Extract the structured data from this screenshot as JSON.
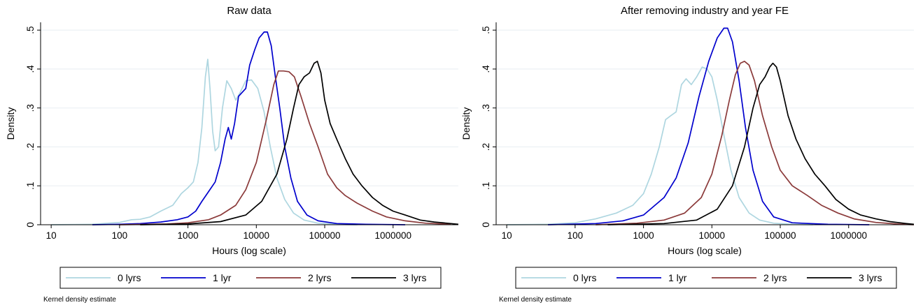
{
  "chart_data": [
    {
      "type": "line",
      "title": "Raw data",
      "xlabel": "Hours (log scale)",
      "ylabel": "Density",
      "x_scale": "log",
      "xlim": [
        7,
        9000000
      ],
      "ylim": [
        0,
        0.52
      ],
      "x_ticks": [
        10,
        100,
        1000,
        10000,
        100000,
        1000000
      ],
      "x_tick_labels": [
        "10",
        "100",
        "1000",
        "10000",
        "100000",
        "1000000"
      ],
      "y_ticks": [
        0,
        0.1,
        0.2,
        0.3,
        0.4,
        0.5
      ],
      "y_tick_labels": [
        "0",
        ".1",
        ".2",
        ".3",
        ".4",
        ".5"
      ],
      "grid": true,
      "legend_position": "bottom",
      "note": "Kernel density estimate",
      "series": [
        {
          "name": "0 lyrs",
          "color": "#aed6e0",
          "points": [
            [
              10,
              0
            ],
            [
              40,
              0.001
            ],
            [
              100,
              0.006
            ],
            [
              150,
              0.013
            ],
            [
              200,
              0.014
            ],
            [
              280,
              0.02
            ],
            [
              400,
              0.035
            ],
            [
              600,
              0.05
            ],
            [
              800,
              0.08
            ],
            [
              1000,
              0.095
            ],
            [
              1200,
              0.11
            ],
            [
              1400,
              0.16
            ],
            [
              1600,
              0.25
            ],
            [
              1800,
              0.38
            ],
            [
              1950,
              0.425
            ],
            [
              2100,
              0.35
            ],
            [
              2300,
              0.24
            ],
            [
              2500,
              0.19
            ],
            [
              2800,
              0.2
            ],
            [
              3200,
              0.3
            ],
            [
              3700,
              0.37
            ],
            [
              4300,
              0.35
            ],
            [
              5000,
              0.32
            ],
            [
              5800,
              0.34
            ],
            [
              7000,
              0.37
            ],
            [
              8500,
              0.372
            ],
            [
              10500,
              0.35
            ],
            [
              13000,
              0.29
            ],
            [
              16000,
              0.2
            ],
            [
              20000,
              0.12
            ],
            [
              26000,
              0.065
            ],
            [
              35000,
              0.03
            ],
            [
              50000,
              0.012
            ],
            [
              80000,
              0.004
            ],
            [
              150000,
              0.001
            ],
            [
              300000,
              0
            ]
          ]
        },
        {
          "name": "1 lyr",
          "color": "#0000cd",
          "points": [
            [
              40,
              0
            ],
            [
              100,
              0.001
            ],
            [
              200,
              0.003
            ],
            [
              400,
              0.007
            ],
            [
              700,
              0.013
            ],
            [
              1000,
              0.02
            ],
            [
              1300,
              0.035
            ],
            [
              1600,
              0.06
            ],
            [
              2000,
              0.085
            ],
            [
              2500,
              0.11
            ],
            [
              3000,
              0.16
            ],
            [
              3500,
              0.22
            ],
            [
              3900,
              0.25
            ],
            [
              4300,
              0.22
            ],
            [
              4800,
              0.26
            ],
            [
              5500,
              0.33
            ],
            [
              6200,
              0.34
            ],
            [
              7000,
              0.35
            ],
            [
              8000,
              0.41
            ],
            [
              9500,
              0.45
            ],
            [
              11000,
              0.48
            ],
            [
              13000,
              0.495
            ],
            [
              14500,
              0.495
            ],
            [
              16500,
              0.46
            ],
            [
              19000,
              0.38
            ],
            [
              22000,
              0.3
            ],
            [
              26000,
              0.2
            ],
            [
              32000,
              0.12
            ],
            [
              40000,
              0.06
            ],
            [
              55000,
              0.025
            ],
            [
              80000,
              0.01
            ],
            [
              150000,
              0.003
            ],
            [
              400000,
              0.001
            ],
            [
              1500000,
              0
            ]
          ]
        },
        {
          "name": "2 lyrs",
          "color": "#8b3a3a",
          "points": [
            [
              100,
              0
            ],
            [
              500,
              0.002
            ],
            [
              1000,
              0.005
            ],
            [
              2000,
              0.013
            ],
            [
              3000,
              0.025
            ],
            [
              5000,
              0.05
            ],
            [
              7000,
              0.09
            ],
            [
              10000,
              0.16
            ],
            [
              14000,
              0.27
            ],
            [
              18000,
              0.36
            ],
            [
              21000,
              0.395
            ],
            [
              25000,
              0.395
            ],
            [
              30000,
              0.393
            ],
            [
              36000,
              0.38
            ],
            [
              45000,
              0.33
            ],
            [
              60000,
              0.26
            ],
            [
              80000,
              0.2
            ],
            [
              110000,
              0.13
            ],
            [
              150000,
              0.095
            ],
            [
              200000,
              0.075
            ],
            [
              300000,
              0.055
            ],
            [
              500000,
              0.035
            ],
            [
              800000,
              0.02
            ],
            [
              1500000,
              0.01
            ],
            [
              3000000,
              0.004
            ],
            [
              7000000,
              0.001
            ]
          ]
        },
        {
          "name": "3 lyrs",
          "color": "#000000",
          "points": [
            [
              200,
              0
            ],
            [
              1000,
              0.002
            ],
            [
              3000,
              0.008
            ],
            [
              7000,
              0.025
            ],
            [
              12000,
              0.06
            ],
            [
              20000,
              0.13
            ],
            [
              28000,
              0.22
            ],
            [
              35000,
              0.3
            ],
            [
              42000,
              0.36
            ],
            [
              50000,
              0.38
            ],
            [
              60000,
              0.39
            ],
            [
              70000,
              0.415
            ],
            [
              78000,
              0.42
            ],
            [
              88000,
              0.39
            ],
            [
              100000,
              0.32
            ],
            [
              120000,
              0.26
            ],
            [
              150000,
              0.22
            ],
            [
              200000,
              0.17
            ],
            [
              260000,
              0.13
            ],
            [
              350000,
              0.1
            ],
            [
              500000,
              0.07
            ],
            [
              700000,
              0.05
            ],
            [
              1000000,
              0.035
            ],
            [
              1500000,
              0.025
            ],
            [
              2500000,
              0.012
            ],
            [
              4000000,
              0.007
            ],
            [
              7000000,
              0.003
            ],
            [
              9000000,
              0.001
            ]
          ]
        }
      ]
    },
    {
      "type": "line",
      "title": "After removing industry and year FE",
      "xlabel": "Hours (log scale)",
      "ylabel": "Density",
      "x_scale": "log",
      "xlim": [
        7,
        9000000
      ],
      "ylim": [
        0,
        0.52
      ],
      "x_ticks": [
        10,
        100,
        1000,
        10000,
        100000,
        1000000
      ],
      "x_tick_labels": [
        "10",
        "100",
        "1000",
        "10000",
        "100000",
        "1000000"
      ],
      "y_ticks": [
        0,
        0.1,
        0.2,
        0.3,
        0.4,
        0.5
      ],
      "y_tick_labels": [
        "0",
        ".1",
        ".2",
        ".3",
        ".4",
        ".5"
      ],
      "grid": true,
      "legend_position": "bottom",
      "note": "Kernel density estimate",
      "series": [
        {
          "name": "0 lyrs",
          "color": "#aed6e0",
          "points": [
            [
              10,
              0
            ],
            [
              40,
              0.001
            ],
            [
              100,
              0.005
            ],
            [
              200,
              0.015
            ],
            [
              400,
              0.03
            ],
            [
              700,
              0.05
            ],
            [
              1000,
              0.08
            ],
            [
              1300,
              0.13
            ],
            [
              1700,
              0.2
            ],
            [
              2100,
              0.27
            ],
            [
              2500,
              0.28
            ],
            [
              3000,
              0.29
            ],
            [
              3600,
              0.36
            ],
            [
              4200,
              0.375
            ],
            [
              5000,
              0.36
            ],
            [
              6000,
              0.38
            ],
            [
              7200,
              0.405
            ],
            [
              8500,
              0.4
            ],
            [
              10000,
              0.38
            ],
            [
              12000,
              0.32
            ],
            [
              15000,
              0.23
            ],
            [
              19000,
              0.14
            ],
            [
              25000,
              0.07
            ],
            [
              35000,
              0.03
            ],
            [
              50000,
              0.012
            ],
            [
              80000,
              0.004
            ],
            [
              150000,
              0.001
            ],
            [
              300000,
              0
            ]
          ]
        },
        {
          "name": "1 lyr",
          "color": "#0000cd",
          "points": [
            [
              40,
              0
            ],
            [
              200,
              0.003
            ],
            [
              500,
              0.01
            ],
            [
              1000,
              0.025
            ],
            [
              2000,
              0.07
            ],
            [
              3000,
              0.12
            ],
            [
              4500,
              0.21
            ],
            [
              6500,
              0.33
            ],
            [
              9000,
              0.42
            ],
            [
              12000,
              0.48
            ],
            [
              15000,
              0.505
            ],
            [
              17000,
              0.505
            ],
            [
              20000,
              0.47
            ],
            [
              25000,
              0.37
            ],
            [
              31000,
              0.25
            ],
            [
              40000,
              0.14
            ],
            [
              55000,
              0.06
            ],
            [
              80000,
              0.02
            ],
            [
              150000,
              0.005
            ],
            [
              500000,
              0.001
            ],
            [
              2000000,
              0
            ]
          ]
        },
        {
          "name": "2 lyrs",
          "color": "#8b3a3a",
          "points": [
            [
              200,
              0
            ],
            [
              800,
              0.004
            ],
            [
              2000,
              0.012
            ],
            [
              4000,
              0.03
            ],
            [
              7000,
              0.07
            ],
            [
              10000,
              0.13
            ],
            [
              14000,
              0.23
            ],
            [
              18000,
              0.32
            ],
            [
              22000,
              0.385
            ],
            [
              26000,
              0.415
            ],
            [
              30000,
              0.42
            ],
            [
              35000,
              0.41
            ],
            [
              42000,
              0.37
            ],
            [
              55000,
              0.28
            ],
            [
              75000,
              0.2
            ],
            [
              100000,
              0.14
            ],
            [
              150000,
              0.1
            ],
            [
              250000,
              0.075
            ],
            [
              400000,
              0.05
            ],
            [
              700000,
              0.03
            ],
            [
              1200000,
              0.015
            ],
            [
              2500000,
              0.006
            ],
            [
              5000000,
              0.002
            ],
            [
              9000000,
              0
            ]
          ]
        },
        {
          "name": "3 lyrs",
          "color": "#000000",
          "points": [
            [
              300,
              0
            ],
            [
              2000,
              0.003
            ],
            [
              6000,
              0.012
            ],
            [
              12000,
              0.04
            ],
            [
              20000,
              0.1
            ],
            [
              30000,
              0.2
            ],
            [
              40000,
              0.3
            ],
            [
              50000,
              0.36
            ],
            [
              60000,
              0.38
            ],
            [
              70000,
              0.405
            ],
            [
              78000,
              0.415
            ],
            [
              88000,
              0.405
            ],
            [
              100000,
              0.37
            ],
            [
              130000,
              0.28
            ],
            [
              170000,
              0.22
            ],
            [
              230000,
              0.17
            ],
            [
              320000,
              0.13
            ],
            [
              450000,
              0.1
            ],
            [
              650000,
              0.065
            ],
            [
              1000000,
              0.04
            ],
            [
              1500000,
              0.025
            ],
            [
              2500000,
              0.015
            ],
            [
              4000000,
              0.008
            ],
            [
              7000000,
              0.003
            ],
            [
              9000000,
              0.001
            ]
          ]
        }
      ]
    }
  ]
}
